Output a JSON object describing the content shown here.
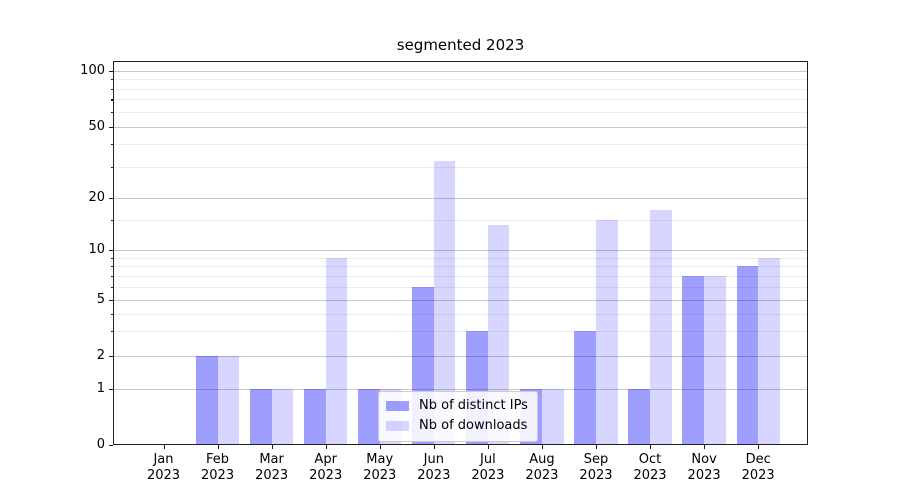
{
  "chart_data": {
    "type": "bar",
    "title": "segmented 2023",
    "categories": [
      "Jan",
      "Feb",
      "Mar",
      "Apr",
      "May",
      "Jun",
      "Jul",
      "Aug",
      "Sep",
      "Oct",
      "Nov",
      "Dec"
    ],
    "category_year_line": "2023",
    "series": [
      {
        "name": "Nb of distinct IPs",
        "color": "rgba(0,0,255,0.38)",
        "values": [
          0,
          2,
          1,
          1,
          1,
          6,
          3,
          1,
          3,
          1,
          7,
          8
        ]
      },
      {
        "name": "Nb of downloads",
        "color": "rgba(0,0,255,0.16)",
        "values": [
          0,
          2,
          1,
          9,
          1,
          32,
          14,
          1,
          15,
          17,
          7,
          9
        ]
      }
    ],
    "yaxis": {
      "scale": "symlog",
      "major_ticks": [
        0,
        1,
        2,
        5,
        10,
        20,
        50,
        100
      ],
      "minor_ticks": [
        3,
        4,
        6,
        7,
        8,
        9,
        15,
        30,
        40,
        60,
        70,
        80,
        90
      ],
      "range": [
        0,
        115
      ]
    },
    "xlabel": "",
    "ylabel": "",
    "grid": true,
    "legend": {
      "position": "lower center",
      "entries": [
        "Nb of distinct IPs",
        "Nb of downloads"
      ]
    }
  },
  "colors": {
    "bar_ips": "rgba(0,0,255,0.38)",
    "bar_downloads": "rgba(0,0,255,0.16)",
    "grid_major": "#c9c9c9",
    "grid_minor": "#ececec",
    "spine": "#1f1f1f",
    "background": "#ffffff"
  }
}
